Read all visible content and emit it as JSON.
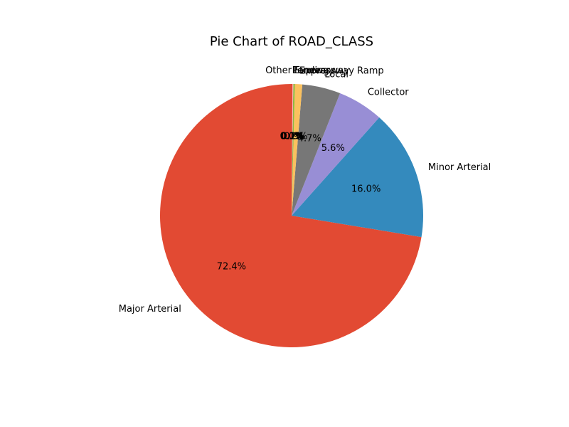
{
  "chart_data": {
    "type": "pie",
    "title": "Pie Chart of ROAD_CLASS",
    "start_angle_deg": 90,
    "direction": "counterclockwise",
    "slices": [
      {
        "label": "Major Arterial",
        "percent": 72.4,
        "percent_label": "72.4%",
        "color": "#E24A33"
      },
      {
        "label": "Minor Arterial",
        "percent": 16.0,
        "percent_label": "16.0%",
        "color": "#348ABD"
      },
      {
        "label": "Collector",
        "percent": 5.6,
        "percent_label": "5.6%",
        "color": "#988ED5"
      },
      {
        "label": "Local",
        "percent": 4.7,
        "percent_label": "4.7%",
        "color": "#777777"
      },
      {
        "label": "Expressway Ramp",
        "percent": 0.9,
        "percent_label": "0.9%",
        "color": "#FBC15E"
      },
      {
        "label": "Expressway",
        "percent": 0.2,
        "percent_label": "0.2%",
        "color": "#8EBA42"
      },
      {
        "label": "Laneway",
        "percent": 0.1,
        "percent_label": "0.1%",
        "color": "#FFB5B8"
      },
      {
        "label": "Pending",
        "percent": 0.1,
        "percent_label": "0.1%",
        "color": "#E24A33"
      },
      {
        "label": "Other",
        "percent": 0.0,
        "percent_label": "0.0%",
        "color": "#348ABD"
      }
    ]
  }
}
